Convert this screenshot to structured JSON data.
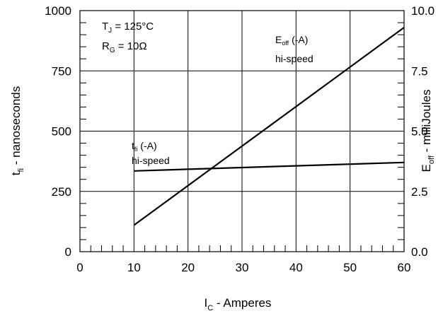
{
  "chart_data": {
    "type": "line",
    "xlabel": {
      "main": "I",
      "sub": "C",
      "rest": " - Amperes"
    },
    "ylabel_left": {
      "main": "t",
      "sub": "fi",
      "rest": " - nanoseconds"
    },
    "ylabel_right": {
      "main": "E",
      "sub": "off",
      "rest": " - milliJoules"
    },
    "xlim": [
      0,
      60
    ],
    "ylim_left": [
      0,
      1000
    ],
    "ylim_right": [
      0.0,
      10.0
    ],
    "x_ticks": [
      "0",
      "10",
      "20",
      "30",
      "40",
      "50",
      "60"
    ],
    "y_ticks_left": [
      "0",
      "250",
      "500",
      "750",
      "1000"
    ],
    "y_ticks_right": [
      "0.0",
      "2.5",
      "5.0",
      "7.5",
      "10.0"
    ],
    "grid": true,
    "conditions": {
      "tj": {
        "main": "T",
        "sub": "J",
        "rest": " = 125°C"
      },
      "rg": {
        "main": "R",
        "sub": "G",
        "rest": " = 10Ω"
      }
    },
    "series": [
      {
        "name": "t_fi (-A) hi-speed",
        "axis": "left",
        "label": {
          "main": "t",
          "sub": "fi",
          "rest": " (-A)",
          "line2": "hi-speed"
        },
        "x": [
          10,
          60
        ],
        "y": [
          335,
          370
        ]
      },
      {
        "name": "E_off (-A) hi-speed",
        "axis": "right",
        "label": {
          "main": "E",
          "sub": "off",
          "rest": " (-A)",
          "line2": "hi-speed"
        },
        "x": [
          10,
          60
        ],
        "y": [
          1.1,
          9.3
        ]
      }
    ]
  }
}
